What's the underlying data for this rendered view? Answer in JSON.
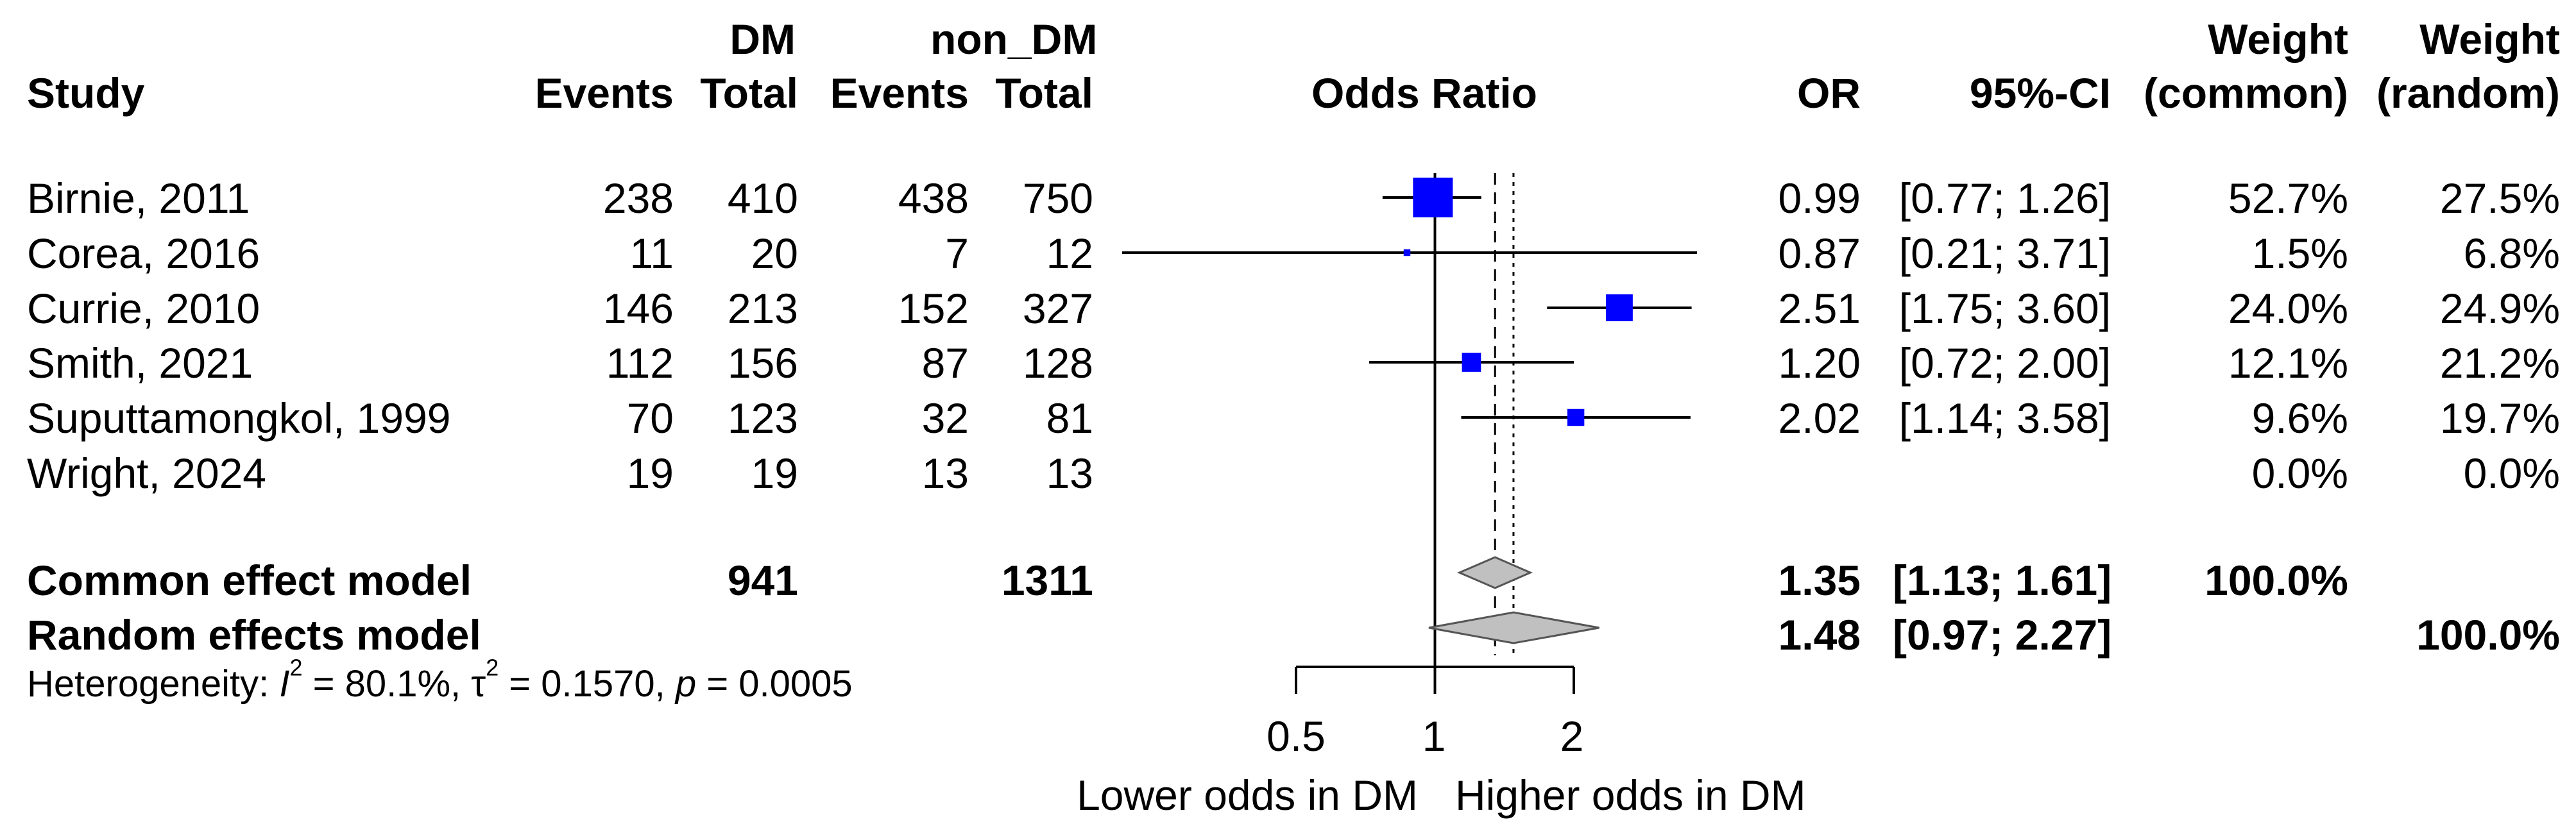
{
  "chart_data": {
    "type": "forest",
    "title": "Odds Ratio",
    "headers": {
      "study": "Study",
      "group_e": "DM",
      "group_c": "non_DM",
      "events": "Events",
      "total": "Total",
      "or": "OR",
      "ci": "95%-CI",
      "weight": "Weight",
      "common": "(common)",
      "random": "(random)"
    },
    "studies": [
      {
        "name": "Birnie, 2011",
        "ev_e": "238",
        "n_e": "410",
        "ev_c": "438",
        "n_c": "750",
        "or": 0.99,
        "lo": 0.77,
        "hi": 1.26,
        "or_text": "0.99",
        "ci_text": "[0.77; 1.26]",
        "w_common": "52.7%",
        "w_random": "27.5%",
        "w": 52.7
      },
      {
        "name": "Corea, 2016",
        "ev_e": "11",
        "n_e": "20",
        "ev_c": "7",
        "n_c": "12",
        "or": 0.87,
        "lo": 0.21,
        "hi": 3.71,
        "or_text": "0.87",
        "ci_text": "[0.21; 3.71]",
        "w_common": "1.5%",
        "w_random": "6.8%",
        "w": 1.5
      },
      {
        "name": "Currie, 2010",
        "ev_e": "146",
        "n_e": "213",
        "ev_c": "152",
        "n_c": "327",
        "or": 2.51,
        "lo": 1.75,
        "hi": 3.6,
        "or_text": "2.51",
        "ci_text": "[1.75; 3.60]",
        "w_common": "24.0%",
        "w_random": "24.9%",
        "w": 24.0
      },
      {
        "name": "Smith, 2021",
        "ev_e": "112",
        "n_e": "156",
        "ev_c": "87",
        "n_c": "128",
        "or": 1.2,
        "lo": 0.72,
        "hi": 2.0,
        "or_text": "1.20",
        "ci_text": "[0.72; 2.00]",
        "w_common": "12.1%",
        "w_random": "21.2%",
        "w": 12.1
      },
      {
        "name": "Suputtamongkol, 1999",
        "ev_e": "70",
        "n_e": "123",
        "ev_c": "32",
        "n_c": "81",
        "or": 2.02,
        "lo": 1.14,
        "hi": 3.58,
        "or_text": "2.02",
        "ci_text": "[1.14; 3.58]",
        "w_common": "9.6%",
        "w_random": "19.7%",
        "w": 9.6
      },
      {
        "name": "Wright, 2024",
        "ev_e": "19",
        "n_e": "19",
        "ev_c": "13",
        "n_c": "13",
        "or": null,
        "lo": null,
        "hi": null,
        "or_text": "",
        "ci_text": "",
        "w_common": "0.0%",
        "w_random": "0.0%",
        "w": 0
      }
    ],
    "pooled": {
      "common": {
        "label": "Common effect model",
        "n_e": "941",
        "n_c": "1311",
        "or": 1.35,
        "lo": 1.13,
        "hi": 1.61,
        "or_text": "1.35",
        "ci_text": "[1.13; 1.61]",
        "w_common": "100.0%",
        "w_random": ""
      },
      "random": {
        "label": "Random effects model",
        "or": 1.48,
        "lo": 0.97,
        "hi": 2.27,
        "or_text": "1.48",
        "ci_text": "[0.97; 2.27]",
        "w_common": "",
        "w_random": "100.0%"
      }
    },
    "heterogeneity": {
      "prefix": "Heterogeneity: ",
      "i2": "I",
      "i2_value": " = 80.1%, ",
      "tau2": "τ",
      "tau2_value": " = 0.1570, ",
      "p": "p",
      "p_value": " = 0.0005"
    },
    "x_axis": {
      "scale": "log",
      "ticks": [
        0.5,
        1,
        2
      ],
      "tick_labels": [
        "0.5",
        "1",
        "2"
      ],
      "range": [
        0.5,
        2
      ],
      "null_value": 1
    },
    "xlabel_left": "Lower odds in DM",
    "xlabel_right": "Higher odds in DM",
    "colors": {
      "square": "#0000ff",
      "diamond": "#c0c0c0",
      "line": "#000000"
    }
  }
}
